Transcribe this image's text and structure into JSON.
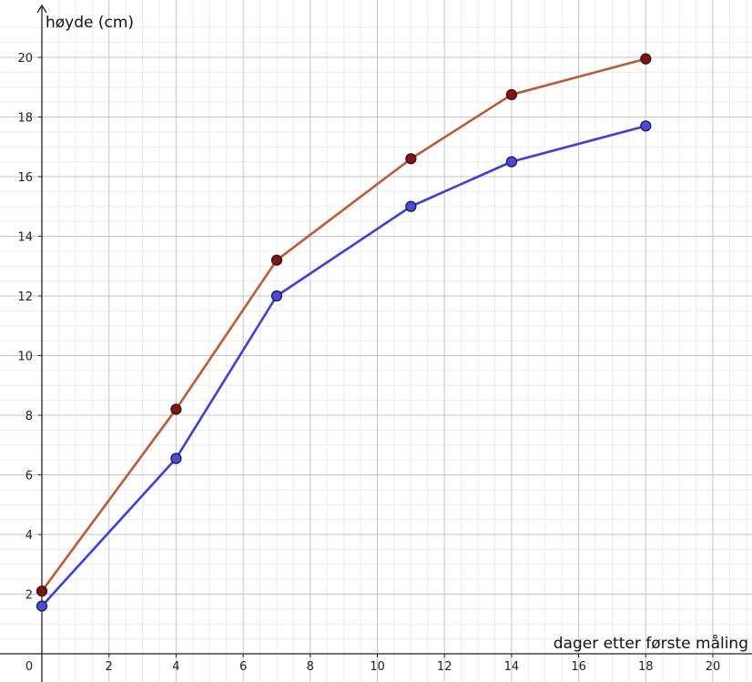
{
  "chart_data": {
    "type": "line",
    "title": "",
    "xlabel": "dager etter første måling",
    "ylabel": "høyde (cm)",
    "xlim": [
      -0.2,
      21
    ],
    "ylim": [
      -0.4,
      21.4
    ],
    "x_ticks": [
      0,
      2,
      4,
      6,
      8,
      10,
      12,
      14,
      16,
      18,
      20
    ],
    "y_ticks": [
      2,
      4,
      6,
      8,
      10,
      12,
      14,
      16,
      18,
      20
    ],
    "grid": true,
    "minor_grid_step": 0.5,
    "legend": "none",
    "series": [
      {
        "color": "#bd5a33",
        "marker_color": "#8b0e0e",
        "x": [
          0,
          4,
          7,
          11,
          14,
          18
        ],
        "y": [
          2.1,
          8.2,
          13.2,
          16.6,
          18.75,
          19.95
        ]
      },
      {
        "color": "#3d3de6",
        "marker_color": "#4848ee",
        "x": [
          0,
          4,
          7,
          11,
          14,
          18
        ],
        "y": [
          1.6,
          6.55,
          12.0,
          15.0,
          16.5,
          17.7
        ]
      }
    ]
  }
}
